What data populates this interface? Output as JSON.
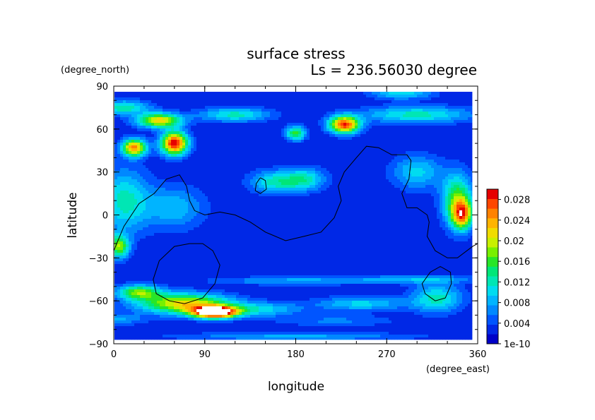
{
  "chart_data": {
    "type": "heatmap",
    "title": "surface stress",
    "subtitle": "Ls = 236.56030 degree",
    "xlabel": "longitude",
    "ylabel": "latitude",
    "x_units": "(degree_east)",
    "y_units": "(degree_north)",
    "xlim": [
      0,
      360
    ],
    "ylim": [
      -90,
      90
    ],
    "xticks": [
      0,
      90,
      180,
      270,
      360
    ],
    "yticks": [
      -90,
      -60,
      -30,
      0,
      30,
      60,
      90
    ],
    "grid": false,
    "colorbar": {
      "range": [
        0,
        0.03
      ],
      "ticks": [
        "1e-10",
        "0.004",
        "0.008",
        "0.012",
        "0.016",
        "0.02",
        "0.024",
        "0.028"
      ],
      "tick_values": [
        0,
        0.004,
        0.008,
        0.012,
        0.016,
        0.02,
        0.024,
        0.028
      ],
      "colors": [
        "#0000c8",
        "#0028e6",
        "#0055ff",
        "#0088ff",
        "#00b4ff",
        "#00dcf0",
        "#00e6b4",
        "#00e678",
        "#28e628",
        "#78f000",
        "#c8f000",
        "#f0dc00",
        "#ffb400",
        "#ff8200",
        "#ff4600",
        "#e60000"
      ]
    },
    "field": {
      "background": 0.002,
      "features": [
        {
          "lon": 100,
          "lat": -68,
          "peak": 0.033,
          "w": 22,
          "h": 4
        },
        {
          "lon": 70,
          "lat": -62,
          "peak": 0.02,
          "w": 45,
          "h": 7
        },
        {
          "lon": 25,
          "lat": -54,
          "peak": 0.015,
          "w": 22,
          "h": 5
        },
        {
          "lon": 145,
          "lat": -66,
          "peak": 0.008,
          "w": 40,
          "h": 5
        },
        {
          "lon": 245,
          "lat": -62,
          "peak": 0.008,
          "w": 45,
          "h": 5
        },
        {
          "lon": 320,
          "lat": -58,
          "peak": 0.01,
          "w": 25,
          "h": 10
        },
        {
          "lon": 5,
          "lat": -22,
          "peak": 0.016,
          "w": 10,
          "h": 8
        },
        {
          "lon": 180,
          "lat": -46,
          "peak": 0.006,
          "w": 80,
          "h": 3
        },
        {
          "lon": 300,
          "lat": -45,
          "peak": 0.006,
          "w": 60,
          "h": 3
        },
        {
          "lon": 60,
          "lat": 50,
          "peak": 0.028,
          "w": 13,
          "h": 8
        },
        {
          "lon": 20,
          "lat": 47,
          "peak": 0.023,
          "w": 12,
          "h": 6
        },
        {
          "lon": 45,
          "lat": 66,
          "peak": 0.02,
          "w": 22,
          "h": 5
        },
        {
          "lon": 228,
          "lat": 63,
          "peak": 0.026,
          "w": 15,
          "h": 6
        },
        {
          "lon": 180,
          "lat": 57,
          "peak": 0.014,
          "w": 10,
          "h": 5
        },
        {
          "lon": 120,
          "lat": 70,
          "peak": 0.01,
          "w": 35,
          "h": 5
        },
        {
          "lon": 300,
          "lat": 70,
          "peak": 0.01,
          "w": 55,
          "h": 6
        },
        {
          "lon": 10,
          "lat": 75,
          "peak": 0.011,
          "w": 25,
          "h": 5
        },
        {
          "lon": 10,
          "lat": 10,
          "peak": 0.01,
          "w": 25,
          "h": 22
        },
        {
          "lon": 60,
          "lat": 5,
          "peak": 0.007,
          "w": 30,
          "h": 15
        },
        {
          "lon": 340,
          "lat": 10,
          "peak": 0.015,
          "w": 15,
          "h": 18
        },
        {
          "lon": 345,
          "lat": 0,
          "peak": 0.018,
          "w": 10,
          "h": 10
        },
        {
          "lon": 160,
          "lat": 23,
          "peak": 0.01,
          "w": 25,
          "h": 8
        },
        {
          "lon": 190,
          "lat": 25,
          "peak": 0.009,
          "w": 20,
          "h": 8
        },
        {
          "lon": 300,
          "lat": 30,
          "peak": 0.008,
          "w": 25,
          "h": 12
        },
        {
          "lon": 285,
          "lat": 85,
          "peak": 0.009,
          "w": 30,
          "h": 4
        },
        {
          "lon": 180,
          "lat": -85,
          "peak": 0.006,
          "w": 120,
          "h": 3
        },
        {
          "lon": 0,
          "lat": -73,
          "peak": 0.006,
          "w": 30,
          "h": 4
        },
        {
          "lon": 220,
          "lat": -74,
          "peak": 0.004,
          "w": 60,
          "h": 4
        }
      ]
    },
    "contours": [
      [
        [
          0,
          -25
        ],
        [
          10,
          -8
        ],
        [
          25,
          8
        ],
        [
          40,
          15
        ],
        [
          52,
          25
        ],
        [
          65,
          28
        ],
        [
          72,
          20
        ],
        [
          75,
          10
        ],
        [
          80,
          3
        ],
        [
          90,
          0
        ],
        [
          105,
          2
        ],
        [
          120,
          0
        ],
        [
          135,
          -5
        ],
        [
          150,
          -12
        ],
        [
          170,
          -18
        ],
        [
          188,
          -15
        ],
        [
          205,
          -12
        ],
        [
          218,
          -2
        ],
        [
          225,
          10
        ],
        [
          222,
          20
        ],
        [
          228,
          30
        ],
        [
          240,
          40
        ],
        [
          250,
          48
        ],
        [
          262,
          47
        ],
        [
          275,
          42
        ],
        [
          290,
          42
        ],
        [
          294,
          38
        ],
        [
          292,
          25
        ],
        [
          285,
          15
        ],
        [
          290,
          5
        ],
        [
          300,
          5
        ],
        [
          310,
          0
        ],
        [
          312,
          -5
        ],
        [
          310,
          -15
        ],
        [
          318,
          -25
        ],
        [
          330,
          -30
        ],
        [
          340,
          -30
        ],
        [
          355,
          -22
        ],
        [
          360,
          -20
        ]
      ],
      [
        [
          75,
          -20
        ],
        [
          60,
          -22
        ],
        [
          45,
          -32
        ],
        [
          39,
          -45
        ],
        [
          42,
          -55
        ],
        [
          55,
          -60
        ],
        [
          70,
          -62
        ],
        [
          88,
          -58
        ],
        [
          100,
          -48
        ],
        [
          105,
          -35
        ],
        [
          98,
          -25
        ],
        [
          88,
          -20
        ],
        [
          75,
          -20
        ]
      ],
      [
        [
          323,
          -36
        ],
        [
          313,
          -40
        ],
        [
          305,
          -48
        ],
        [
          308,
          -55
        ],
        [
          318,
          -60
        ],
        [
          328,
          -58
        ],
        [
          334,
          -48
        ],
        [
          333,
          -40
        ],
        [
          323,
          -36
        ]
      ],
      [
        [
          145,
          26
        ],
        [
          141,
          22
        ],
        [
          140,
          17
        ],
        [
          145,
          15
        ],
        [
          151,
          18
        ],
        [
          150,
          24
        ],
        [
          145,
          26
        ]
      ]
    ]
  }
}
